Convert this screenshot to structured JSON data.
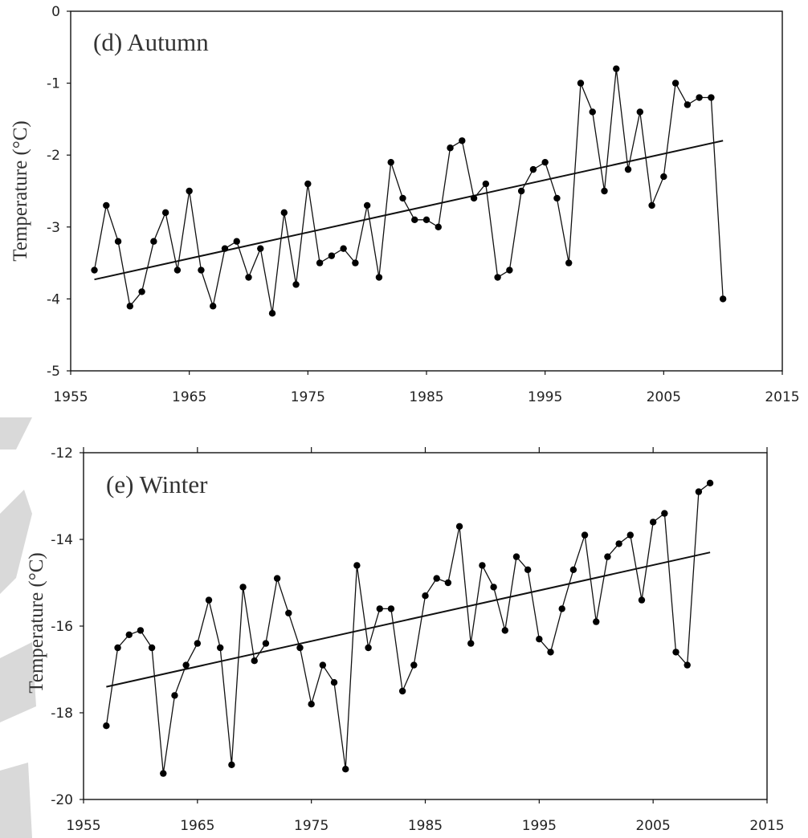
{
  "chart_data": [
    {
      "type": "line",
      "title": "(d) Autumn",
      "ylabel": "Temperature (°C)",
      "xlabel": "",
      "xlim": [
        1955,
        2015
      ],
      "ylim": [
        -5,
        0
      ],
      "xticks": [
        1955,
        1965,
        1975,
        1985,
        1995,
        2005,
        2015
      ],
      "yticks": [
        0,
        -1,
        -2,
        -3,
        -4,
        -5
      ],
      "grid": false,
      "series": [
        {
          "x": [
            1957,
            1958,
            1959,
            1960,
            1961,
            1962,
            1963,
            1964,
            1965,
            1966,
            1967,
            1968,
            1969,
            1970,
            1971,
            1972,
            1973,
            1974,
            1975,
            1976,
            1977,
            1978,
            1979,
            1980,
            1981,
            1982,
            1983,
            1984,
            1985,
            1986,
            1987,
            1988,
            1989,
            1990,
            1991,
            1992,
            1993,
            1994,
            1995,
            1996,
            1997,
            1998,
            1999,
            2000,
            2001,
            2002,
            2003,
            2004,
            2005,
            2006,
            2007,
            2008,
            2009,
            2010
          ],
          "values": [
            -3.6,
            -2.7,
            -3.2,
            -4.1,
            -3.9,
            -3.2,
            -2.8,
            -3.6,
            -2.5,
            -3.6,
            -4.1,
            -3.3,
            -3.2,
            -3.7,
            -3.3,
            -4.2,
            -2.8,
            -3.8,
            -2.4,
            -3.5,
            -3.4,
            -3.3,
            -3.5,
            -2.7,
            -3.7,
            -2.1,
            -2.6,
            -2.9,
            -2.9,
            -3.0,
            -1.9,
            -1.8,
            -2.6,
            -2.4,
            -3.7,
            -3.6,
            -2.5,
            -2.2,
            -2.1,
            -2.6,
            -3.5,
            -1.0,
            -1.4,
            -2.5,
            -0.8,
            -2.2,
            -1.4,
            -2.7,
            -2.3,
            -1.0,
            -1.3,
            -1.2,
            -1.2,
            -4.0
          ]
        }
      ],
      "trend": {
        "x": [
          1957,
          2010
        ],
        "values": [
          -3.73,
          -1.8
        ]
      }
    },
    {
      "type": "line",
      "title": "(e) Winter",
      "ylabel": "Temperature (°C)",
      "xlabel": "",
      "xlim": [
        1955,
        2015
      ],
      "ylim": [
        -20,
        -12
      ],
      "xticks": [
        1955,
        1965,
        1975,
        1985,
        1995,
        2005,
        2015
      ],
      "yticks": [
        -12,
        -14,
        -16,
        -18,
        -20
      ],
      "grid": false,
      "series": [
        {
          "x": [
            1957,
            1958,
            1959,
            1960,
            1961,
            1962,
            1963,
            1964,
            1965,
            1966,
            1967,
            1968,
            1969,
            1970,
            1971,
            1972,
            1973,
            1974,
            1975,
            1976,
            1977,
            1978,
            1979,
            1980,
            1981,
            1982,
            1983,
            1984,
            1985,
            1986,
            1987,
            1988,
            1989,
            1990,
            1991,
            1992,
            1993,
            1994,
            1995,
            1996,
            1997,
            1998,
            1999,
            2000,
            2001,
            2002,
            2003,
            2004,
            2005,
            2006,
            2007,
            2008,
            2009,
            2010
          ],
          "values": [
            -18.3,
            -16.5,
            -16.2,
            -16.1,
            -16.5,
            -19.4,
            -17.6,
            -16.9,
            -16.4,
            -15.4,
            -16.5,
            -19.2,
            -15.1,
            -16.8,
            -16.4,
            -14.9,
            -15.7,
            -16.5,
            -17.8,
            -16.9,
            -17.3,
            -19.3,
            -14.6,
            -16.5,
            -15.6,
            -15.6,
            -17.5,
            -16.9,
            -15.3,
            -14.9,
            -15.0,
            -13.7,
            -16.4,
            -14.6,
            -15.1,
            -16.1,
            -14.4,
            -14.7,
            -16.3,
            -16.6,
            -15.6,
            -14.7,
            -13.9,
            -15.9,
            -14.4,
            -14.1,
            -13.9,
            -15.4,
            -13.6,
            -13.4,
            -16.6,
            -16.9,
            -12.9,
            -12.7
          ]
        }
      ],
      "trend": {
        "x": [
          1957,
          2010
        ],
        "values": [
          -17.4,
          -14.3
        ]
      }
    }
  ]
}
